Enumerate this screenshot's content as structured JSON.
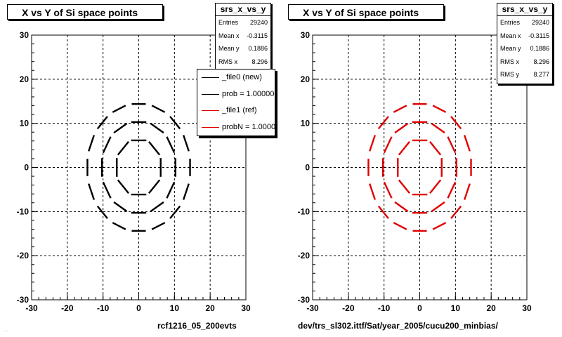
{
  "footer_note": "...",
  "colors": {
    "black": "#000000",
    "red": "#e00000"
  },
  "chart_data": [
    {
      "type": "scatter",
      "title": "X vs Y of Si space points",
      "xlabel": "rcf1216_05_200evts",
      "ylabel": "",
      "xlim": [
        -30,
        30
      ],
      "ylim": [
        -30,
        30
      ],
      "x_ticks": [
        -30,
        -20,
        -10,
        0,
        10,
        20,
        30
      ],
      "y_ticks": [
        -30,
        -20,
        -10,
        0,
        10,
        20,
        30
      ],
      "grid": true,
      "color": "#000000",
      "rings_radius": [
        6.5,
        10.5,
        14.5
      ],
      "rings_segments": [
        8,
        12,
        16
      ],
      "stats": {
        "name": "srs_x_vs_y",
        "rows": [
          {
            "label": "Entries",
            "value": "29240"
          },
          {
            "label": "Mean x",
            "value": "-0.3115"
          },
          {
            "label": "Mean y",
            "value": "0.1886"
          },
          {
            "label": "RMS x",
            "value": "8.296"
          }
        ]
      },
      "legend": {
        "entries": [
          {
            "label": "_file0 (new)",
            "color": "#000000"
          },
          {
            "label": "prob = 1.000000",
            "color": "#000000"
          },
          {
            "label": "_file1 (ref)",
            "color": "#e00000"
          },
          {
            "label": "probN = 1.000000",
            "color": "#e00000"
          }
        ]
      }
    },
    {
      "type": "scatter",
      "title": "X vs Y of Si space points",
      "xlabel": "dev/trs_sl302.ittf/Sat/year_2005/cucu200_minbias/",
      "ylabel": "",
      "xlim": [
        -30,
        30
      ],
      "ylim": [
        -30,
        30
      ],
      "x_ticks": [
        -30,
        -20,
        -10,
        0,
        10,
        20,
        30
      ],
      "y_ticks": [
        -30,
        -20,
        -10,
        0,
        10,
        20,
        30
      ],
      "grid": true,
      "color": "#e00000",
      "rings_radius": [
        6.5,
        10.5,
        14.5
      ],
      "rings_segments": [
        8,
        12,
        16
      ],
      "stats": {
        "name": "srs_x_vs_y",
        "rows": [
          {
            "label": "Entries",
            "value": "29240"
          },
          {
            "label": "Mean x",
            "value": "-0.3115"
          },
          {
            "label": "Mean y",
            "value": "0.1886"
          },
          {
            "label": "RMS x",
            "value": "8.296"
          },
          {
            "label": "RMS y",
            "value": "8.277"
          }
        ]
      }
    }
  ]
}
